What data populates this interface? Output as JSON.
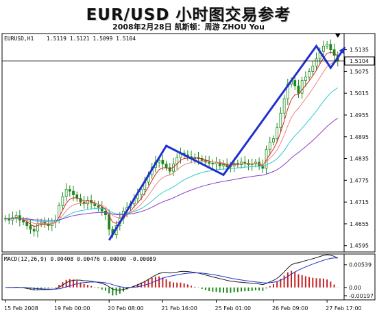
{
  "header": {
    "title": "EUR/USD 小时图交易参考",
    "subtitle": "2008年2月28日  凯斯顿：周游 ZHOU You"
  },
  "colors": {
    "candle": "#1a8a1a",
    "drawing": "#1f2fd0",
    "ma_fast": "#e02020",
    "ma_mid": "#f08080",
    "ma_slow1": "#30c8d0",
    "ma_slow2": "#8a3cc8",
    "macd_hist_pos": "#c82020",
    "macd_hist_neg": "#1a8a1a",
    "macd_line": "#1a1a1a",
    "signal_line": "#1f2fd0"
  },
  "chart_data": [
    {
      "type": "candlestick",
      "instrument_label": "EURUSD,H1",
      "ohlc_readout": "1.5119 1.5121 1.5099 1.5104",
      "current_price_label": "1.5104",
      "y_tick_labels": [
        "1.5135",
        "1.5075",
        "1.5015",
        "1.4955",
        "1.4895",
        "1.4835",
        "1.4775",
        "1.4715",
        "1.4655",
        "1.4595"
      ],
      "ylim": [
        1.4585,
        1.5155
      ],
      "x_tick_labels": [
        "15 Feb 2008",
        "19 Feb 00:00",
        "20 Feb 08:00",
        "21 Feb 16:00",
        "25 Feb 01:00",
        "26 Feb 09:00",
        "27 Feb 17:00"
      ],
      "x_tick_positions": [
        0,
        14,
        29,
        44,
        59,
        75,
        90
      ],
      "n_bars": 94,
      "close": [
        1.467,
        1.4665,
        1.4672,
        1.4678,
        1.4665,
        1.466,
        1.465,
        1.464,
        1.4635,
        1.4655,
        1.466,
        1.4655,
        1.465,
        1.466,
        1.4665,
        1.4705,
        1.473,
        1.475,
        1.4745,
        1.4735,
        1.4725,
        1.4715,
        1.471,
        1.472,
        1.4712,
        1.4705,
        1.47,
        1.469,
        1.468,
        1.464,
        1.4625,
        1.465,
        1.467,
        1.469,
        1.47,
        1.471,
        1.4725,
        1.4735,
        1.475,
        1.477,
        1.479,
        1.481,
        1.4825,
        1.483,
        1.482,
        1.481,
        1.48,
        1.482,
        1.4838,
        1.485,
        1.4845,
        1.484,
        1.4835,
        1.4838,
        1.4835,
        1.483,
        1.4825,
        1.4822,
        1.482,
        1.4825,
        1.4815,
        1.4818,
        1.4812,
        1.4815,
        1.4822,
        1.4818,
        1.4825,
        1.4822,
        1.4818,
        1.482,
        1.4825,
        1.4815,
        1.4808,
        1.486,
        1.488,
        1.489,
        1.492,
        1.496,
        1.5,
        1.504,
        1.505,
        1.5035,
        1.5015,
        1.505,
        1.506,
        1.5075,
        1.509,
        1.511,
        1.513,
        1.5145,
        1.515,
        1.5135,
        1.5119,
        1.5104
      ],
      "ma_periods_note": "",
      "drawn_pattern": [
        [
          29,
          1.461
        ],
        [
          45,
          1.487
        ],
        [
          61,
          1.479
        ],
        [
          87,
          1.5145
        ],
        [
          91,
          1.5085
        ],
        [
          95,
          1.5142
        ]
      ],
      "indicator": {
        "label": "MACD(12,26,9) 0.00408 0.00476 0.00000 -0.00089",
        "y_tick_labels": [
          "0.00539",
          "0.00",
          "-0.00197"
        ],
        "ylim": [
          -0.0023,
          0.006
        ]
      }
    }
  ]
}
